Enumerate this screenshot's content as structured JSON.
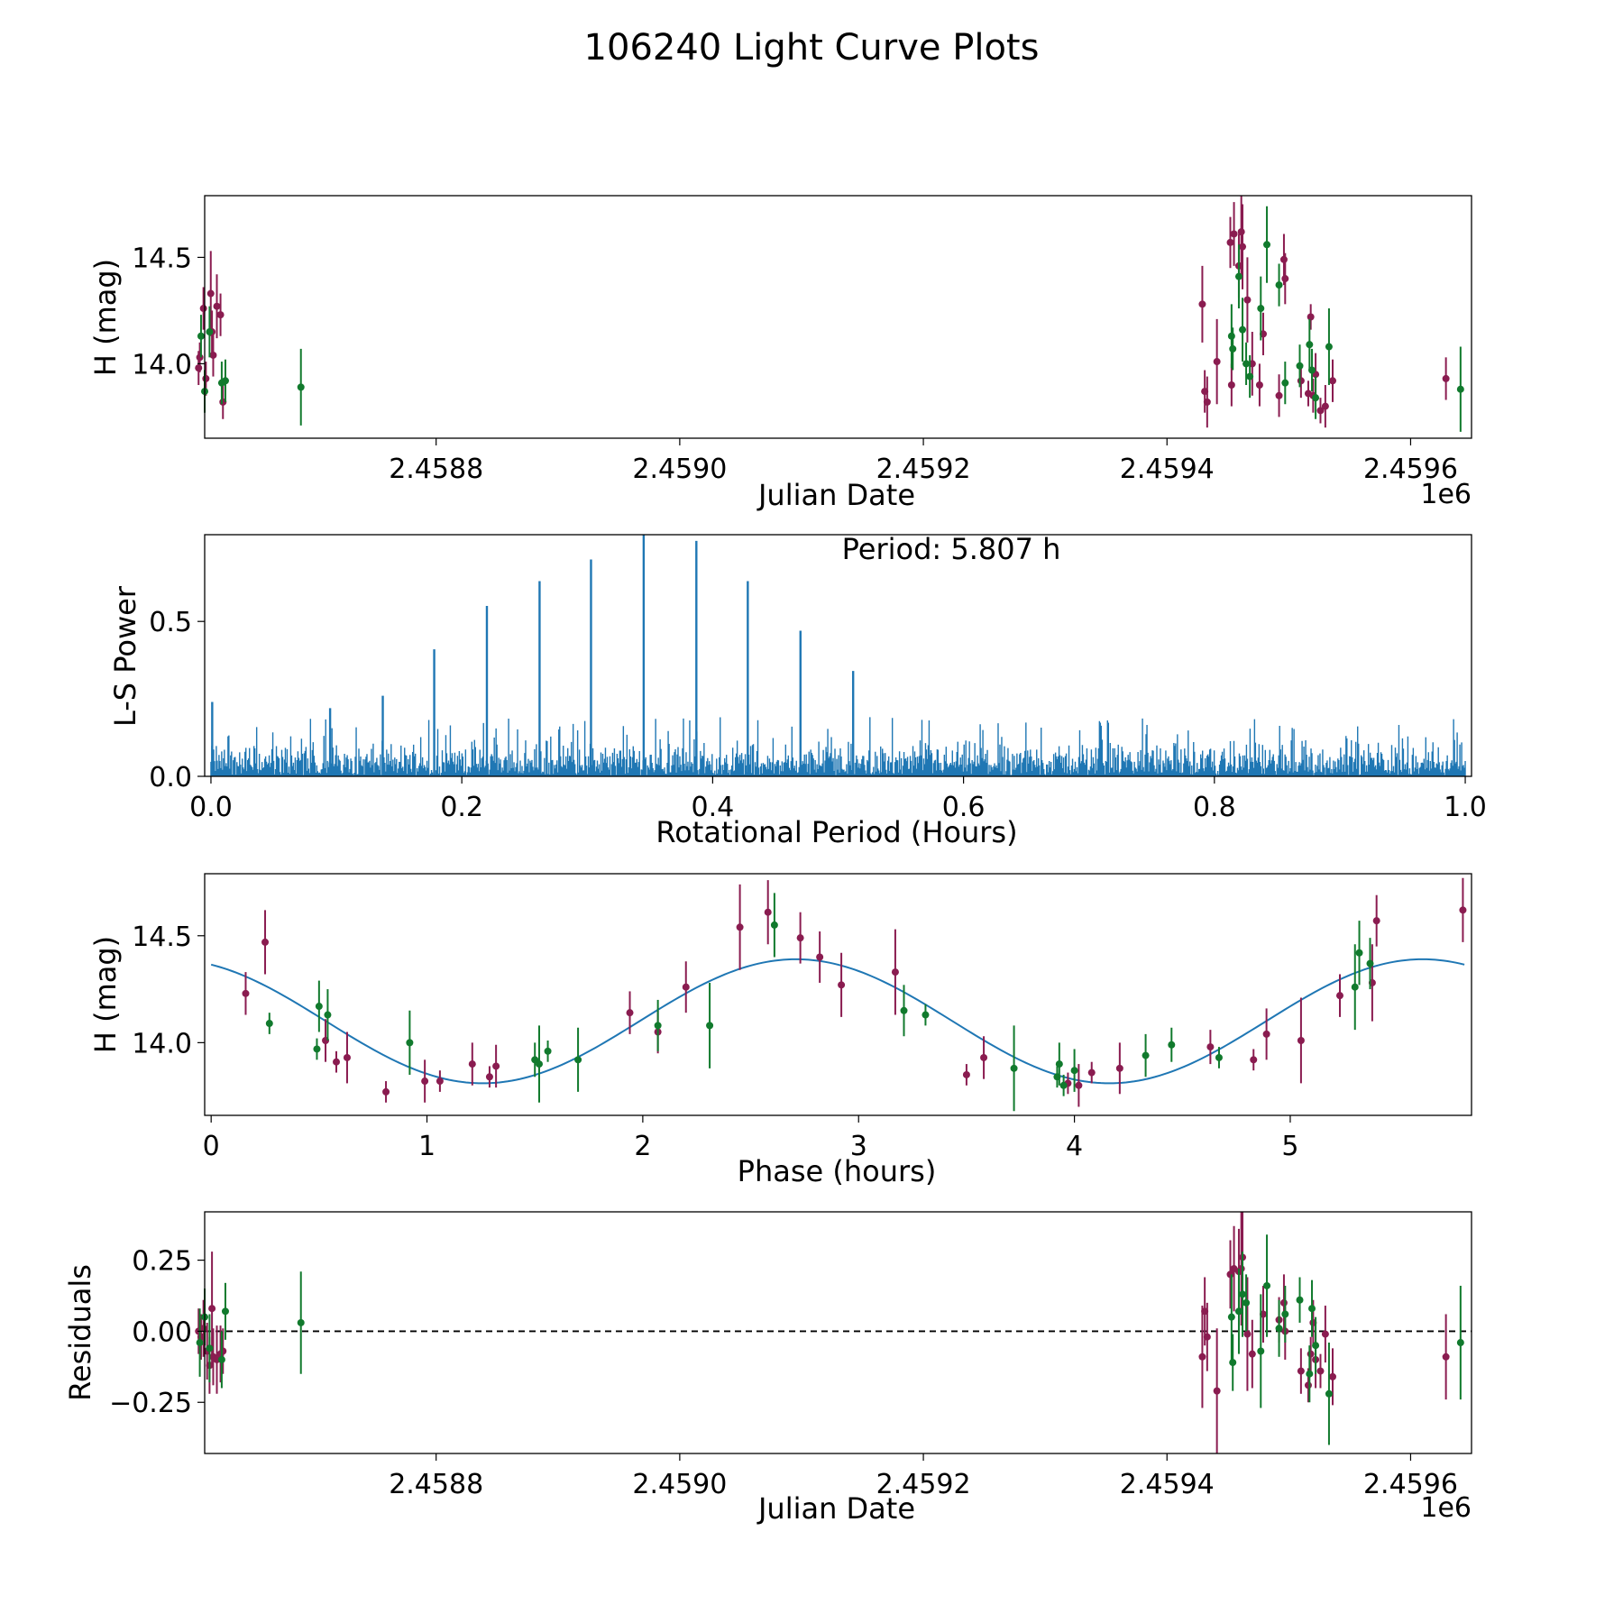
{
  "figure_title": "106240 Light Curve Plots",
  "colors": {
    "purple": "#8a1c50",
    "green": "#117a2d",
    "blue": "#1f77b4",
    "axes": "#000000"
  },
  "chart_data": [
    {
      "id": "lightcurve",
      "type": "scatter",
      "title": "",
      "xlabel": "Julian Date",
      "ylabel": "H (mag)",
      "x_offset_label": "1e6",
      "xlim": [
        2.45861,
        2.45965
      ],
      "ylim": [
        13.65,
        14.79
      ],
      "xticks": [
        2.4588,
        2.459,
        2.4592,
        2.4594,
        2.4596
      ],
      "xtick_labels": [
        "2.4588",
        "2.4590",
        "2.4592",
        "2.4594",
        "2.4596"
      ],
      "yticks": [
        14.0,
        14.5
      ],
      "ytick_labels": [
        "14.0",
        "14.5"
      ],
      "series": [
        {
          "name": "purple",
          "color": "#8a1c50",
          "points": [
            [
              2.458605,
              13.98,
              0.08
            ],
            [
              2.458606,
              14.03,
              0.07
            ],
            [
              2.458609,
              14.26,
              0.1
            ],
            [
              2.458611,
              13.93,
              0.08
            ],
            [
              2.458615,
              14.33,
              0.2
            ],
            [
              2.458616,
              14.15,
              0.1
            ],
            [
              2.458617,
              14.04,
              0.1
            ],
            [
              2.45862,
              14.27,
              0.15
            ],
            [
              2.458623,
              14.23,
              0.1
            ],
            [
              2.458625,
              13.82,
              0.08
            ],
            [
              2.459429,
              14.28,
              0.18
            ],
            [
              2.459431,
              13.87,
              0.1
            ],
            [
              2.459433,
              13.82,
              0.12
            ],
            [
              2.459441,
              14.01,
              0.2
            ],
            [
              2.459452,
              14.57,
              0.12
            ],
            [
              2.459453,
              13.9,
              0.1
            ],
            [
              2.459455,
              14.61,
              0.15
            ],
            [
              2.459459,
              14.46,
              0.15
            ],
            [
              2.459461,
              14.62,
              0.2
            ],
            [
              2.459462,
              14.55,
              0.2
            ],
            [
              2.459466,
              14.3,
              0.2
            ],
            [
              2.45947,
              14.0,
              0.15
            ],
            [
              2.459476,
              13.9,
              0.1
            ],
            [
              2.459479,
              14.14,
              0.1
            ],
            [
              2.459492,
              13.85,
              0.1
            ],
            [
              2.459496,
              14.49,
              0.12
            ],
            [
              2.459497,
              14.4,
              0.12
            ],
            [
              2.45951,
              13.92,
              0.08
            ],
            [
              2.459516,
              13.86,
              0.06
            ],
            [
              2.459518,
              14.22,
              0.06
            ],
            [
              2.45952,
              13.85,
              0.08
            ],
            [
              2.459522,
              13.95,
              0.1
            ],
            [
              2.459526,
              13.78,
              0.06
            ],
            [
              2.45953,
              13.8,
              0.1
            ],
            [
              2.459536,
              13.92,
              0.1
            ],
            [
              2.459629,
              13.93,
              0.1
            ]
          ]
        },
        {
          "name": "green",
          "color": "#117a2d",
          "points": [
            [
              2.458607,
              14.13,
              0.1
            ],
            [
              2.45861,
              13.87,
              0.1
            ],
            [
              2.458614,
              14.15,
              0.12
            ],
            [
              2.458624,
              13.91,
              0.1
            ],
            [
              2.458627,
              13.92,
              0.1
            ],
            [
              2.458689,
              13.89,
              0.18
            ],
            [
              2.459453,
              14.13,
              0.15
            ],
            [
              2.459454,
              14.07,
              0.1
            ],
            [
              2.459459,
              14.41,
              0.15
            ],
            [
              2.459462,
              14.16,
              0.15
            ],
            [
              2.459465,
              14.0,
              0.1
            ],
            [
              2.459468,
              13.94,
              0.1
            ],
            [
              2.459477,
              14.26,
              0.15
            ],
            [
              2.459482,
              14.56,
              0.18
            ],
            [
              2.459492,
              14.37,
              0.1
            ],
            [
              2.459497,
              13.91,
              0.1
            ],
            [
              2.459509,
              13.99,
              0.1
            ],
            [
              2.459517,
              14.09,
              0.12
            ],
            [
              2.459519,
              13.97,
              0.1
            ],
            [
              2.459522,
              13.84,
              0.1
            ],
            [
              2.459533,
              14.08,
              0.18
            ],
            [
              2.459641,
              13.88,
              0.2
            ]
          ]
        }
      ]
    },
    {
      "id": "periodogram",
      "type": "line",
      "title": "",
      "annotation": "Period: 5.807 h",
      "xlabel": "Rotational Period (Hours)",
      "ylabel": "L-S Power",
      "xlim": [
        -0.005,
        1.005
      ],
      "ylim": [
        0.0,
        0.78
      ],
      "xticks": [
        0.0,
        0.2,
        0.4,
        0.6,
        0.8,
        1.0
      ],
      "xtick_labels": [
        "0.0",
        "0.2",
        "0.4",
        "0.6",
        "0.8",
        "1.0"
      ],
      "yticks": [
        0.0,
        0.5
      ],
      "ytick_labels": [
        "0.0",
        "0.5"
      ],
      "color": "#1f77b4",
      "noise_level": 0.12,
      "peaks": [
        [
          0.001,
          0.24
        ],
        [
          0.178,
          0.41
        ],
        [
          0.22,
          0.55
        ],
        [
          0.262,
          0.63
        ],
        [
          0.303,
          0.7
        ],
        [
          0.345,
          0.78
        ],
        [
          0.387,
          0.76
        ],
        [
          0.428,
          0.63
        ],
        [
          0.47,
          0.47
        ],
        [
          0.512,
          0.34
        ],
        [
          0.137,
          0.26
        ],
        [
          0.095,
          0.22
        ]
      ]
    },
    {
      "id": "phased",
      "type": "scatter",
      "title": "",
      "xlabel": "Phase (hours)",
      "ylabel": "H (mag)",
      "xlim": [
        -0.03,
        5.84
      ],
      "ylim": [
        13.66,
        14.79
      ],
      "xticks": [
        0,
        1,
        2,
        3,
        4,
        5
      ],
      "xtick_labels": [
        "0",
        "1",
        "2",
        "3",
        "4",
        "5"
      ],
      "yticks": [
        14.0,
        14.5
      ],
      "ytick_labels": [
        "14.0",
        "14.5"
      ],
      "fit": {
        "color": "#1f77b4",
        "mean": 14.1,
        "amplitude": 0.29,
        "period": 2.9035,
        "phase_peak": 2.71
      },
      "series": [
        {
          "name": "purple",
          "color": "#8a1c50",
          "points": [
            [
              0.16,
              14.23,
              0.1
            ],
            [
              0.25,
              14.47,
              0.15
            ],
            [
              0.53,
              14.01,
              0.1
            ],
            [
              0.58,
              13.91,
              0.05
            ],
            [
              0.63,
              13.93,
              0.12
            ],
            [
              0.81,
              13.77,
              0.05
            ],
            [
              0.99,
              13.82,
              0.1
            ],
            [
              1.06,
              13.82,
              0.05
            ],
            [
              1.21,
              13.9,
              0.1
            ],
            [
              1.29,
              13.84,
              0.05
            ],
            [
              1.32,
              13.89,
              0.1
            ],
            [
              1.94,
              14.14,
              0.1
            ],
            [
              2.07,
              14.05,
              0.1
            ],
            [
              2.2,
              14.26,
              0.12
            ],
            [
              2.45,
              14.54,
              0.2
            ],
            [
              2.58,
              14.61,
              0.15
            ],
            [
              2.73,
              14.49,
              0.12
            ],
            [
              2.82,
              14.4,
              0.12
            ],
            [
              2.92,
              14.27,
              0.15
            ],
            [
              3.17,
              14.33,
              0.2
            ],
            [
              3.5,
              13.85,
              0.05
            ],
            [
              3.58,
              13.93,
              0.1
            ],
            [
              3.97,
              13.81,
              0.05
            ],
            [
              4.02,
              13.8,
              0.1
            ],
            [
              4.08,
              13.86,
              0.05
            ],
            [
              4.21,
              13.88,
              0.12
            ],
            [
              4.63,
              13.98,
              0.08
            ],
            [
              4.83,
              13.92,
              0.05
            ],
            [
              4.89,
              14.04,
              0.12
            ],
            [
              5.05,
              14.01,
              0.2
            ],
            [
              5.23,
              14.22,
              0.1
            ],
            [
              5.38,
              14.28,
              0.18
            ],
            [
              5.4,
              14.57,
              0.12
            ],
            [
              5.8,
              14.62,
              0.15
            ]
          ]
        },
        {
          "name": "green",
          "color": "#117a2d",
          "points": [
            [
              0.27,
              14.09,
              0.05
            ],
            [
              0.49,
              13.97,
              0.05
            ],
            [
              0.5,
              14.17,
              0.12
            ],
            [
              0.54,
              14.13,
              0.12
            ],
            [
              0.92,
              14.0,
              0.15
            ],
            [
              1.5,
              13.92,
              0.08
            ],
            [
              1.52,
              13.9,
              0.18
            ],
            [
              1.56,
              13.96,
              0.05
            ],
            [
              1.7,
              13.92,
              0.15
            ],
            [
              2.07,
              14.08,
              0.12
            ],
            [
              2.31,
              14.08,
              0.2
            ],
            [
              2.61,
              14.55,
              0.15
            ],
            [
              3.21,
              14.15,
              0.12
            ],
            [
              3.31,
              14.13,
              0.05
            ],
            [
              3.72,
              13.88,
              0.2
            ],
            [
              3.92,
              13.84,
              0.05
            ],
            [
              3.93,
              13.9,
              0.1
            ],
            [
              3.95,
              13.8,
              0.05
            ],
            [
              4.0,
              13.87,
              0.1
            ],
            [
              4.33,
              13.94,
              0.1
            ],
            [
              4.45,
              13.99,
              0.08
            ],
            [
              4.67,
              13.93,
              0.05
            ],
            [
              5.3,
              14.26,
              0.2
            ],
            [
              5.32,
              14.42,
              0.15
            ],
            [
              5.37,
              14.37,
              0.12
            ]
          ]
        }
      ]
    },
    {
      "id": "residuals",
      "type": "scatter",
      "title": "",
      "xlabel": "Julian Date",
      "ylabel": "Residuals",
      "x_offset_label": "1e6",
      "xlim": [
        2.45861,
        2.45965
      ],
      "ylim": [
        -0.43,
        0.42
      ],
      "xticks": [
        2.4588,
        2.459,
        2.4592,
        2.4594,
        2.4596
      ],
      "xtick_labels": [
        "2.4588",
        "2.4590",
        "2.4592",
        "2.4594",
        "2.4596"
      ],
      "yticks": [
        -0.25,
        0.0,
        0.25
      ],
      "ytick_labels": [
        "−0.25",
        "0.00",
        "0.25"
      ],
      "zero_line": true,
      "series": [
        {
          "name": "purple",
          "color": "#8a1c50",
          "points": [
            [
              2.458605,
              0.0,
              0.08
            ],
            [
              2.458607,
              -0.02,
              0.08
            ],
            [
              2.458609,
              0.01,
              0.1
            ],
            [
              2.458612,
              -0.07,
              0.1
            ],
            [
              2.458614,
              -0.12,
              0.1
            ],
            [
              2.458616,
              0.08,
              0.2
            ],
            [
              2.458617,
              -0.09,
              0.1
            ],
            [
              2.45862,
              -0.1,
              0.12
            ],
            [
              2.458623,
              -0.08,
              0.1
            ],
            [
              2.458625,
              -0.07,
              0.08
            ],
            [
              2.459429,
              -0.09,
              0.18
            ],
            [
              2.459431,
              0.07,
              0.12
            ],
            [
              2.459433,
              -0.02,
              0.12
            ],
            [
              2.459441,
              -0.21,
              0.22
            ],
            [
              2.459452,
              0.2,
              0.12
            ],
            [
              2.459455,
              0.22,
              0.15
            ],
            [
              2.459459,
              0.21,
              0.15
            ],
            [
              2.459461,
              0.22,
              0.2
            ],
            [
              2.459462,
              0.26,
              0.2
            ],
            [
              2.459466,
              -0.01,
              0.2
            ],
            [
              2.45947,
              -0.08,
              0.12
            ],
            [
              2.459479,
              0.06,
              0.1
            ],
            [
              2.459492,
              0.04,
              0.08
            ],
            [
              2.459496,
              0.1,
              0.1
            ],
            [
              2.459497,
              0.0,
              0.1
            ],
            [
              2.45951,
              -0.14,
              0.08
            ],
            [
              2.459516,
              -0.19,
              0.06
            ],
            [
              2.459518,
              -0.08,
              0.06
            ],
            [
              2.45952,
              0.03,
              0.08
            ],
            [
              2.459522,
              -0.1,
              0.1
            ],
            [
              2.459526,
              -0.14,
              0.06
            ],
            [
              2.45953,
              -0.01,
              0.1
            ],
            [
              2.459536,
              -0.16,
              0.1
            ],
            [
              2.459629,
              -0.09,
              0.15
            ]
          ]
        },
        {
          "name": "green",
          "color": "#117a2d",
          "points": [
            [
              2.458606,
              -0.04,
              0.12
            ],
            [
              2.45861,
              0.05,
              0.1
            ],
            [
              2.458614,
              -0.06,
              0.12
            ],
            [
              2.458624,
              -0.1,
              0.1
            ],
            [
              2.458627,
              0.07,
              0.1
            ],
            [
              2.458689,
              0.03,
              0.18
            ],
            [
              2.459453,
              0.05,
              0.15
            ],
            [
              2.459454,
              -0.11,
              0.1
            ],
            [
              2.459459,
              0.07,
              0.15
            ],
            [
              2.459462,
              0.13,
              0.15
            ],
            [
              2.459465,
              0.1,
              0.1
            ],
            [
              2.459477,
              -0.07,
              0.2
            ],
            [
              2.459482,
              0.16,
              0.18
            ],
            [
              2.459492,
              0.01,
              0.1
            ],
            [
              2.459497,
              0.06,
              0.1
            ],
            [
              2.459509,
              0.11,
              0.08
            ],
            [
              2.459517,
              -0.15,
              0.1
            ],
            [
              2.459519,
              0.08,
              0.1
            ],
            [
              2.459522,
              -0.05,
              0.1
            ],
            [
              2.459533,
              -0.22,
              0.18
            ],
            [
              2.459641,
              -0.04,
              0.2
            ]
          ]
        }
      ]
    }
  ]
}
